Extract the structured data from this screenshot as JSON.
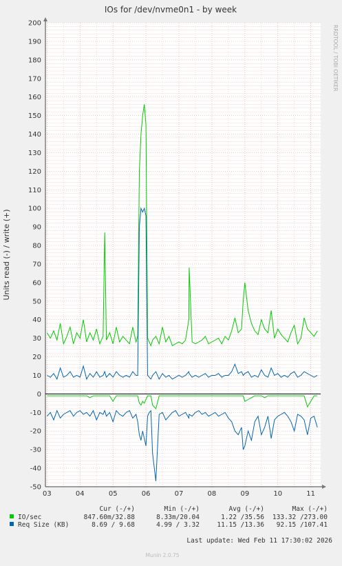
{
  "chart_data": {
    "type": "line",
    "title": "IOs for /dev/nvme0n1 - by week",
    "ylabel": "Units read (-) / write (+)",
    "xlabel": "",
    "ylim": [
      -50,
      200
    ],
    "yticks": [
      200,
      190,
      180,
      170,
      160,
      150,
      140,
      130,
      120,
      110,
      100,
      90,
      80,
      70,
      60,
      50,
      40,
      30,
      20,
      10,
      0,
      -10,
      -20,
      -30,
      -40,
      -50
    ],
    "x_ticks": [
      "03",
      "04",
      "05",
      "06",
      "07",
      "08",
      "09",
      "10",
      "11"
    ],
    "grid": true,
    "watermark": "RRDTOOL / TOBI OETIKER",
    "footer": "Munin 2.0.75",
    "last_update": "Last update: Wed Feb 11 17:30:02 2026",
    "legend_header": {
      "cur": "Cur (-/+)",
      "min": "Min (-/+)",
      "avg": "Avg (-/+)",
      "max": "Max (-/+)"
    },
    "series": [
      {
        "name": "IO/sec",
        "color": "#00cc00",
        "cur": "847.60m/32.88",
        "min": "8.33m/20.04",
        "avg": "1.22 /35.56",
        "max": "133.32 /273.00",
        "x": [
          3.0,
          3.1,
          3.2,
          3.3,
          3.4,
          3.5,
          3.6,
          3.7,
          3.8,
          3.9,
          4.0,
          4.1,
          4.2,
          4.3,
          4.4,
          4.5,
          4.6,
          4.7,
          4.75,
          4.8,
          4.9,
          5.0,
          5.1,
          5.2,
          5.3,
          5.4,
          5.5,
          5.6,
          5.7,
          5.75,
          5.8,
          5.85,
          5.9,
          5.95,
          6.0,
          6.05,
          6.1,
          6.15,
          6.2,
          6.3,
          6.4,
          6.5,
          6.6,
          6.7,
          6.8,
          6.9,
          7.0,
          7.1,
          7.2,
          7.3,
          7.31,
          7.4,
          7.5,
          7.6,
          7.7,
          7.8,
          7.9,
          8.0,
          8.1,
          8.2,
          8.3,
          8.4,
          8.5,
          8.6,
          8.7,
          8.8,
          8.9,
          8.95,
          9.0,
          9.1,
          9.2,
          9.3,
          9.4,
          9.5,
          9.6,
          9.7,
          9.8,
          9.9,
          10.0,
          10.1,
          10.2,
          10.3,
          10.4,
          10.5,
          10.6,
          10.7,
          10.8,
          10.9,
          11.0,
          11.1,
          11.2
        ],
        "plus": [
          33,
          30,
          34,
          29,
          38,
          27,
          31,
          36,
          27,
          33,
          30,
          40,
          28,
          33,
          29,
          35,
          27,
          31,
          87,
          29,
          33,
          27,
          36,
          28,
          31,
          29,
          27,
          36,
          28,
          31,
          120,
          140,
          150,
          156,
          145,
          30,
          28,
          26,
          29,
          31,
          27,
          36,
          28,
          31,
          26,
          27,
          28,
          27,
          29,
          40,
          68,
          28,
          27,
          28,
          29,
          31,
          27,
          28,
          29,
          30,
          27,
          31,
          29,
          34,
          41,
          33,
          35,
          50,
          60,
          45,
          38,
          34,
          32,
          40,
          35,
          33,
          45,
          30,
          35,
          32,
          30,
          28,
          33,
          37,
          27,
          30,
          41,
          35,
          33,
          31,
          34
        ],
        "minus": [
          -1,
          -1,
          -1,
          -1,
          -1,
          -1,
          -1,
          -1,
          -1,
          -1,
          -1,
          -1,
          -1,
          -2,
          -1,
          -1,
          -1,
          -1,
          -1,
          -1,
          -1,
          -4,
          -1,
          -1,
          -1,
          -1,
          -1,
          -1,
          -1,
          -1,
          -5,
          -6,
          -4,
          -5,
          -3,
          -1,
          -1,
          -1,
          -6,
          -8,
          -1,
          -1,
          -1,
          -1,
          -1,
          -1,
          -1,
          -1,
          -1,
          -1,
          -1,
          -1,
          -1,
          -1,
          -1,
          -1,
          -1,
          -1,
          -1,
          -1,
          -1,
          -1,
          -1,
          -1,
          -1,
          -1,
          -1,
          -1,
          -4,
          -3,
          -2,
          -1,
          -1,
          -1,
          -2,
          -1,
          -1,
          -1,
          -1,
          -1,
          -1,
          -1,
          -1,
          -1,
          -1,
          -1,
          -1,
          -7,
          -4,
          -1,
          -1
        ]
      },
      {
        "name": "Req Size (KB)",
        "color": "#0066b3",
        "cur": "8.69 / 9.68",
        "min": "4.99 / 3.32",
        "avg": "11.15 /13.36",
        "max": "92.15 /107.41",
        "x": [
          3.0,
          3.1,
          3.2,
          3.3,
          3.4,
          3.5,
          3.6,
          3.7,
          3.8,
          3.9,
          4.0,
          4.1,
          4.2,
          4.3,
          4.4,
          4.5,
          4.6,
          4.7,
          4.75,
          4.8,
          4.9,
          5.0,
          5.1,
          5.2,
          5.3,
          5.4,
          5.5,
          5.6,
          5.7,
          5.75,
          5.8,
          5.85,
          5.9,
          5.95,
          6.0,
          6.05,
          6.1,
          6.15,
          6.2,
          6.3,
          6.4,
          6.5,
          6.6,
          6.7,
          6.8,
          6.9,
          7.0,
          7.1,
          7.2,
          7.3,
          7.31,
          7.4,
          7.5,
          7.6,
          7.7,
          7.8,
          7.9,
          8.0,
          8.1,
          8.2,
          8.3,
          8.4,
          8.5,
          8.6,
          8.7,
          8.8,
          8.9,
          8.95,
          9.0,
          9.1,
          9.2,
          9.3,
          9.4,
          9.5,
          9.6,
          9.7,
          9.8,
          9.9,
          10.0,
          10.1,
          10.2,
          10.3,
          10.4,
          10.5,
          10.6,
          10.7,
          10.8,
          10.9,
          11.0,
          11.1,
          11.2
        ],
        "plus": [
          10,
          9,
          11,
          8,
          14,
          9,
          10,
          12,
          9,
          10,
          9,
          15,
          8,
          11,
          9,
          12,
          9,
          10,
          12,
          9,
          11,
          9,
          12,
          10,
          9,
          10,
          9,
          12,
          10,
          10,
          90,
          100,
          98,
          100,
          96,
          10,
          9,
          8,
          10,
          12,
          8,
          11,
          9,
          10,
          8,
          9,
          10,
          9,
          10,
          12,
          11,
          9,
          10,
          9,
          10,
          11,
          9,
          10,
          10,
          11,
          9,
          10,
          10,
          12,
          16,
          11,
          12,
          10,
          11,
          12,
          9,
          10,
          9,
          13,
          10,
          9,
          14,
          10,
          11,
          9,
          10,
          9,
          11,
          12,
          9,
          10,
          12,
          11,
          10,
          9,
          10
        ],
        "minus": [
          -12,
          -10,
          -14,
          -9,
          -13,
          -11,
          -10,
          -9,
          -12,
          -10,
          -9,
          -11,
          -10,
          -12,
          -9,
          -14,
          -10,
          -11,
          -9,
          -12,
          -10,
          -15,
          -9,
          -11,
          -12,
          -10,
          -9,
          -13,
          -11,
          -15,
          -22,
          -25,
          -20,
          -24,
          -28,
          -12,
          -10,
          -9,
          -32,
          -47,
          -11,
          -10,
          -14,
          -12,
          -10,
          -9,
          -12,
          -11,
          -10,
          -13,
          -11,
          -12,
          -10,
          -9,
          -11,
          -10,
          -12,
          -11,
          -10,
          -12,
          -11,
          -10,
          -13,
          -15,
          -20,
          -22,
          -18,
          -30,
          -28,
          -20,
          -25,
          -15,
          -12,
          -22,
          -18,
          -12,
          -24,
          -14,
          -12,
          -11,
          -10,
          -12,
          -15,
          -20,
          -11,
          -12,
          -14,
          -22,
          -13,
          -12,
          -18
        ]
      }
    ]
  }
}
